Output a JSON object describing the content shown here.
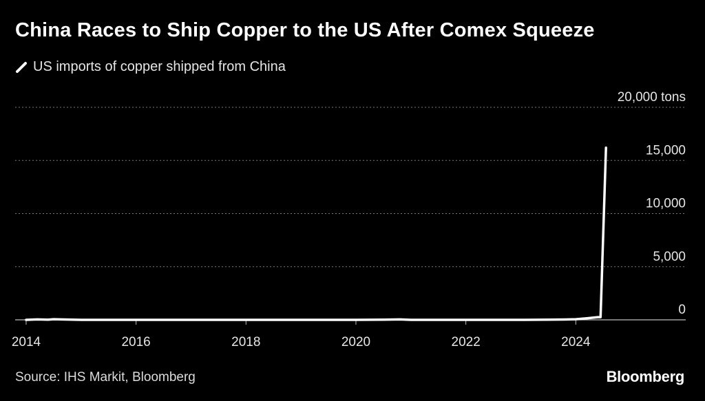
{
  "title": "China Races to Ship Copper to the US After Comex Squeeze",
  "legend": {
    "label": "US imports of copper shipped from China"
  },
  "footer": {
    "source": "Source: IHS Markit, Bloomberg",
    "brand": "Bloomberg"
  },
  "colors": {
    "background": "#000000",
    "line": "#ffffff",
    "grid": "#7a7a7a",
    "text": "#e6e6e6"
  },
  "chart_data": {
    "type": "line",
    "title": "China Races to Ship Copper to the US After Comex Squeeze",
    "xlabel": "",
    "ylabel": "",
    "y_unit": "tons",
    "xlim": [
      2013.8,
      2026.0
    ],
    "ylim": [
      0,
      20000
    ],
    "y_ticks": [
      {
        "value": 0,
        "label": "0"
      },
      {
        "value": 5000,
        "label": "5,000"
      },
      {
        "value": 10000,
        "label": "10,000"
      },
      {
        "value": 15000,
        "label": "15,000"
      },
      {
        "value": 20000,
        "label": "20,000 tons"
      }
    ],
    "x_ticks": [
      {
        "value": 2014,
        "label": "2014"
      },
      {
        "value": 2016,
        "label": "2016"
      },
      {
        "value": 2018,
        "label": "2018"
      },
      {
        "value": 2020,
        "label": "2020"
      },
      {
        "value": 2022,
        "label": "2022"
      },
      {
        "value": 2024,
        "label": "2024"
      }
    ],
    "series": [
      {
        "name": "US imports of copper shipped from China",
        "x": [
          2014.0,
          2014.2,
          2014.4,
          2014.5,
          2014.7,
          2015.0,
          2015.5,
          2016.0,
          2017.0,
          2018.0,
          2019.0,
          2020.0,
          2020.5,
          2020.8,
          2021.0,
          2022.0,
          2023.0,
          2023.5,
          2023.8,
          2024.0,
          2024.2,
          2024.4,
          2024.45,
          2024.55
        ],
        "values": [
          0,
          40,
          20,
          60,
          30,
          0,
          0,
          0,
          0,
          0,
          0,
          0,
          20,
          40,
          0,
          0,
          0,
          20,
          30,
          60,
          150,
          250,
          250,
          16200
        ]
      }
    ]
  }
}
